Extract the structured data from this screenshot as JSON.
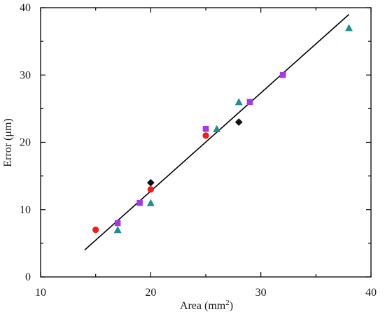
{
  "chart_data": {
    "type": "scatter",
    "title": "",
    "xlabel": "Area (mm",
    "xlabel_sup": "2",
    "xlabel_close": ")",
    "ylabel": "Error (μm)",
    "xlim": [
      10,
      40
    ],
    "ylim": [
      0,
      40
    ],
    "xticks": [
      10,
      20,
      30,
      40
    ],
    "yticks": [
      0,
      10,
      20,
      30,
      40
    ],
    "grid": false,
    "legend": "none",
    "series": [
      {
        "marker": "circle",
        "color": "#ee1c1c",
        "x": [
          15,
          20,
          25
        ],
        "y": [
          7,
          13,
          21
        ]
      },
      {
        "marker": "diamond",
        "color": "#111111",
        "x": [
          20,
          28
        ],
        "y": [
          14,
          23
        ]
      },
      {
        "marker": "square",
        "color": "#a43ae0",
        "x": [
          17,
          19,
          25,
          29,
          32
        ],
        "y": [
          8,
          11,
          22,
          26,
          30
        ]
      },
      {
        "marker": "triangle",
        "color": "#238c8c",
        "x": [
          17,
          20,
          26,
          28,
          38
        ],
        "y": [
          7,
          11,
          22,
          26,
          37
        ]
      }
    ],
    "fit_line": {
      "color": "#000000",
      "x": [
        14,
        38
      ],
      "y": [
        4,
        39
      ]
    }
  }
}
